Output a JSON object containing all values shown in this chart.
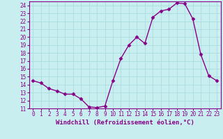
{
  "x": [
    0,
    1,
    2,
    3,
    4,
    5,
    6,
    7,
    8,
    9,
    10,
    11,
    12,
    13,
    14,
    15,
    16,
    17,
    18,
    19,
    20,
    21,
    22,
    23
  ],
  "y": [
    14.5,
    14.2,
    13.5,
    13.2,
    12.8,
    12.8,
    12.2,
    11.2,
    11.1,
    11.3,
    14.5,
    17.3,
    19.0,
    20.0,
    19.2,
    22.5,
    23.3,
    23.5,
    24.3,
    24.2,
    22.3,
    17.8,
    15.1,
    14.5
  ],
  "line_color": "#880088",
  "marker": "D",
  "marker_size": 2.5,
  "bg_color": "#c8eef0",
  "grid_color": "#aadddd",
  "xlabel": "Windchill (Refroidissement éolien,°C)",
  "ylim": [
    11,
    24.5
  ],
  "xlim": [
    -0.5,
    23.5
  ],
  "yticks": [
    11,
    12,
    13,
    14,
    15,
    16,
    17,
    18,
    19,
    20,
    21,
    22,
    23,
    24
  ],
  "xticks": [
    0,
    1,
    2,
    3,
    4,
    5,
    6,
    7,
    8,
    9,
    10,
    11,
    12,
    13,
    14,
    15,
    16,
    17,
    18,
    19,
    20,
    21,
    22,
    23
  ],
  "tick_color": "#880088",
  "label_color": "#880088",
  "label_fontsize": 6.5,
  "tick_fontsize": 5.5,
  "linewidth": 1.0
}
